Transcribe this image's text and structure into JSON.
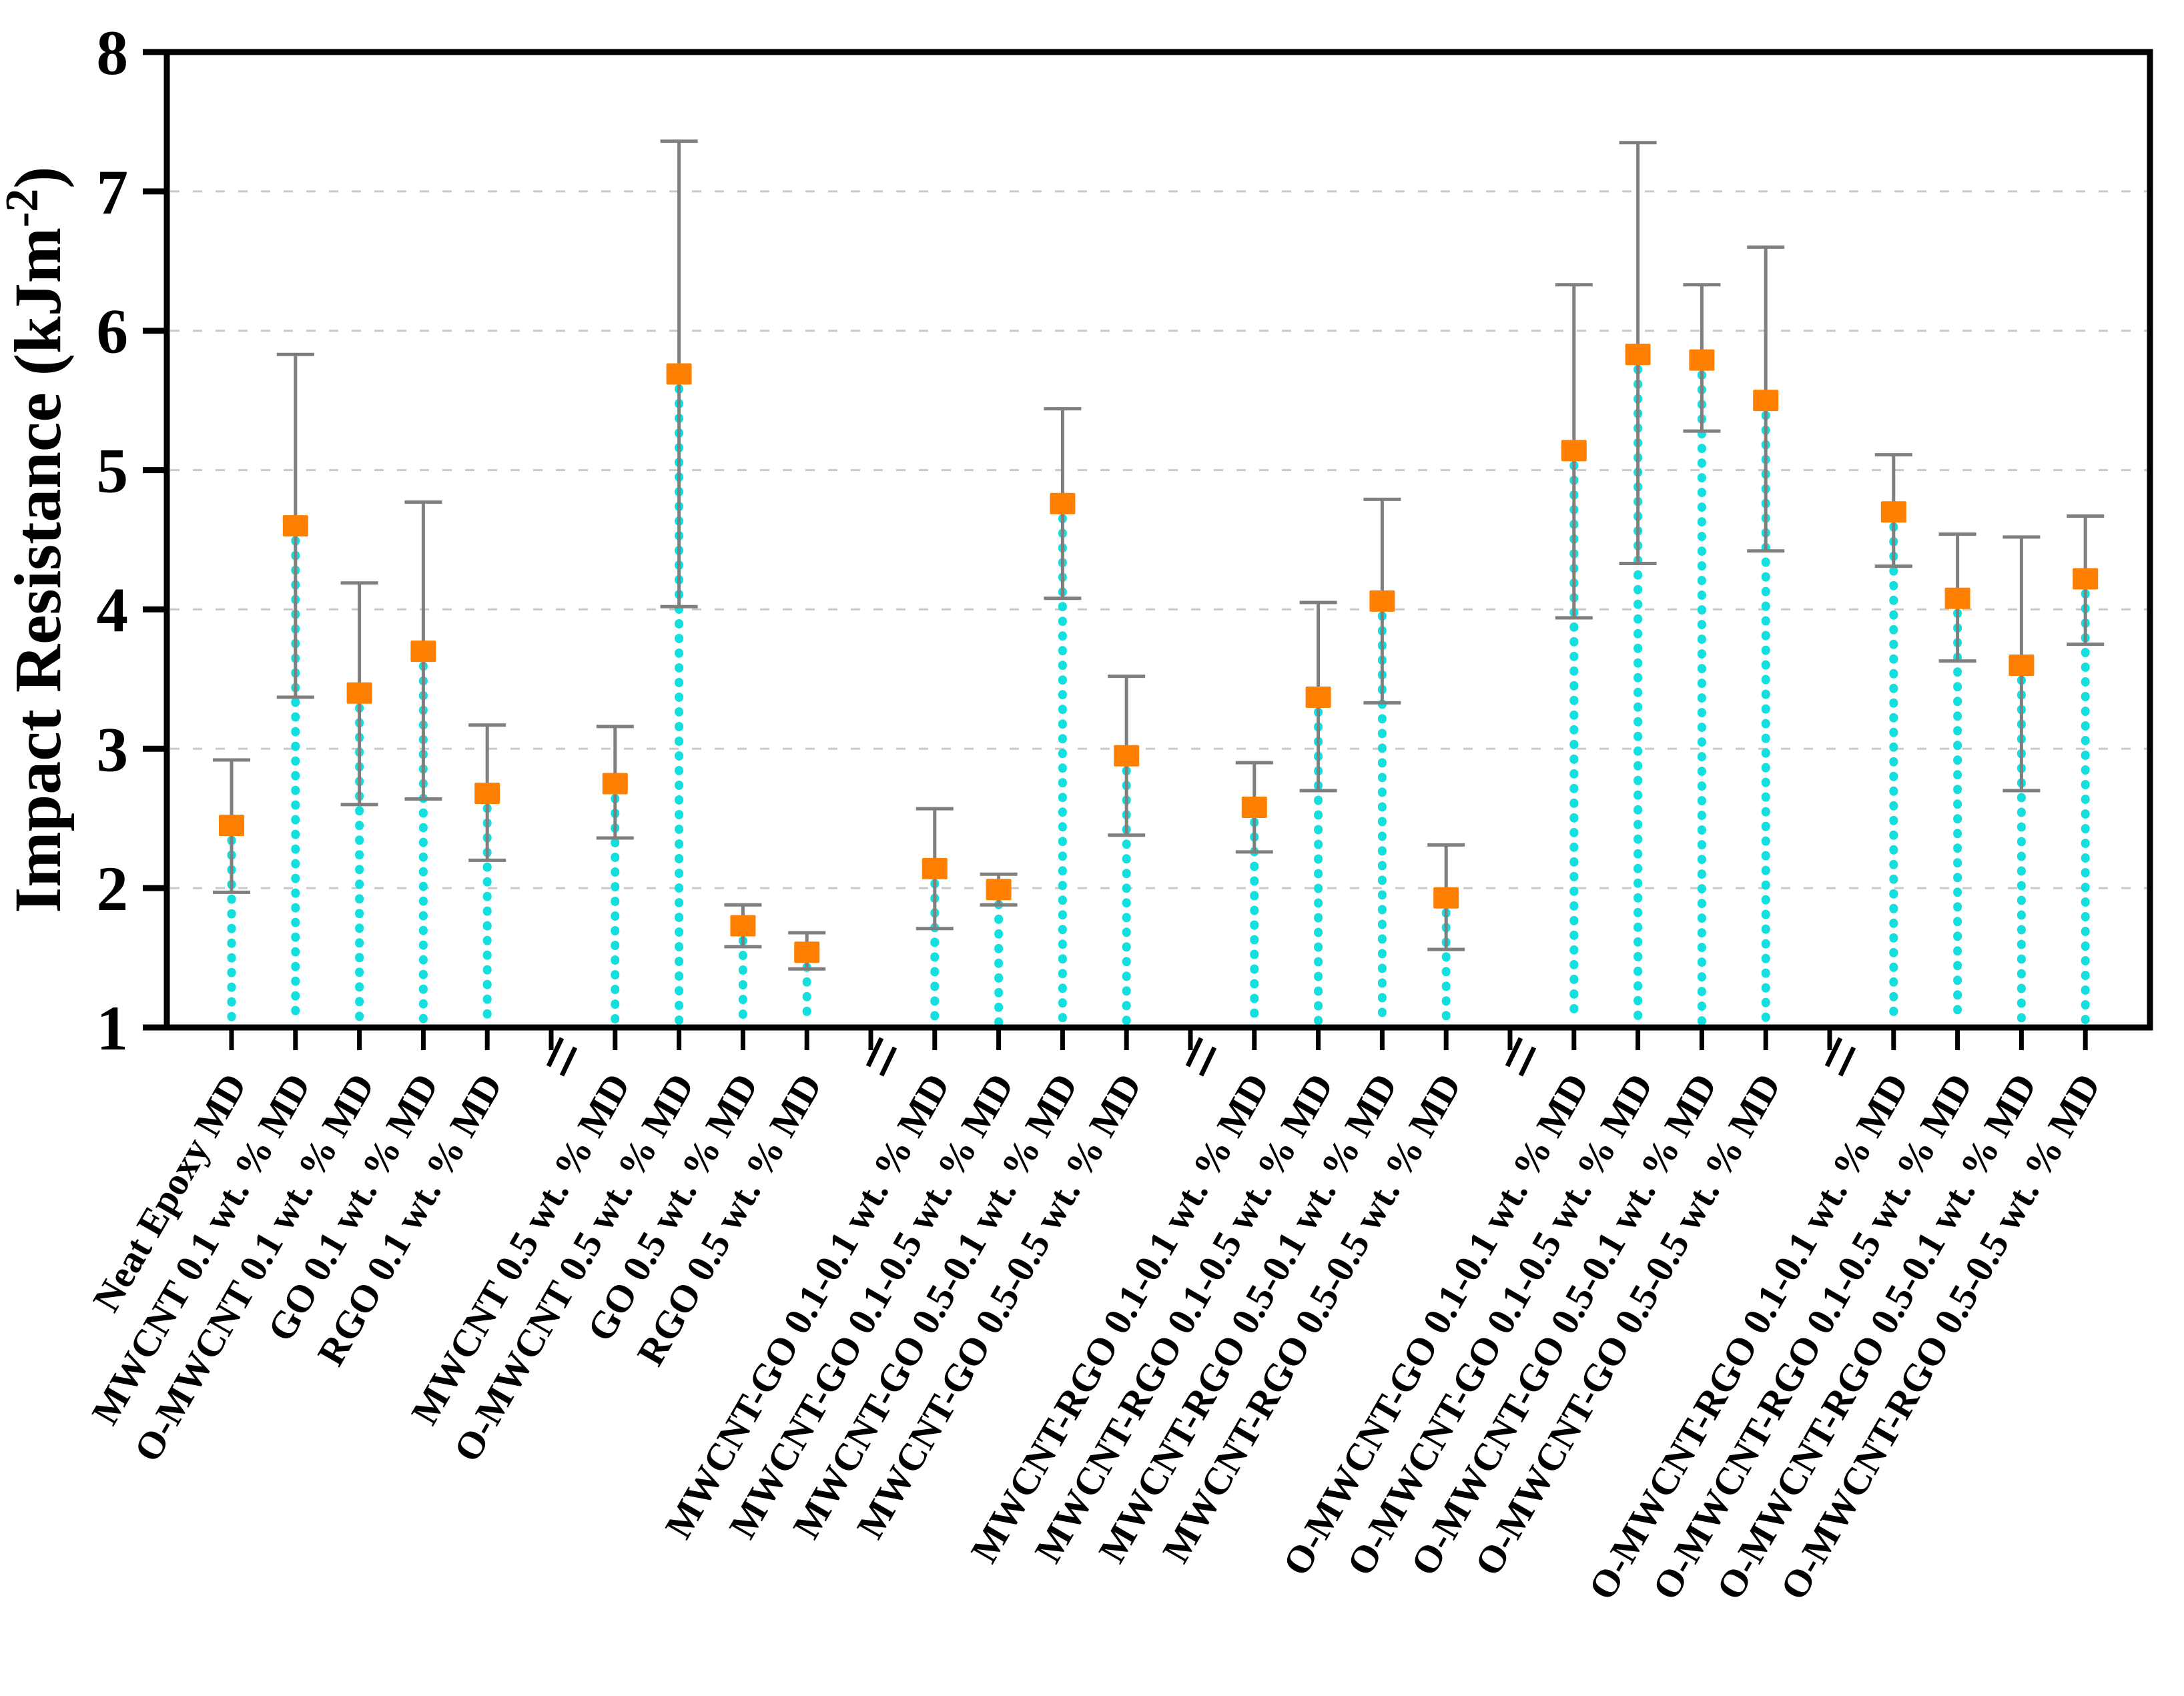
{
  "page": {
    "background": "#FFFFFF"
  },
  "chart_data": {
    "type": "scatter",
    "title": "",
    "ylabel_prefix": "Impact Resistance (kJm",
    "ylabel_superscript": "-2",
    "ylabel_suffix": ")",
    "xlabel": "",
    "ylim": [
      1,
      8
    ],
    "yticks": [
      1,
      2,
      3,
      4,
      5,
      6,
      7,
      8
    ],
    "grid": {
      "horizontal": true,
      "style": "dashed",
      "at": [
        2,
        3,
        4,
        5,
        6,
        7
      ]
    },
    "legend": null,
    "marker": "square",
    "axis_breaks_between_groups": true,
    "group_sizes": [
      5,
      4,
      4,
      4,
      4,
      4
    ],
    "categories": [
      "Neat Epoxy MD",
      "MWCNT 0.1 wt. % MD",
      "O-MWCNT 0.1 wt. % MD",
      "GO 0.1 wt. % MD",
      "RGO 0.1 wt. % MD",
      "MWCNT 0.5 wt. % MD",
      "O-MWCNT 0.5 wt. % MD",
      "GO 0.5 wt. % MD",
      "RGO 0.5 wt. % MD",
      "MWCNT-GO 0.1-0.1 wt. % MD",
      "MWCNT-GO 0.1-0.5 wt. % MD",
      "MWCNT-GO 0.5-0.1 wt. % MD",
      "MWCNT-GO 0.5-0.5 wt. % MD",
      "MWCNT-RGO 0.1-0.1 wt. % MD",
      "MWCNT-RGO 0.1-0.5 wt. % MD",
      "MWCNT-RGO 0.5-0.1 wt. % MD",
      "MWCNT-RGO 0.5-0.5 wt. % MD",
      "O-MWCNT-GO 0.1-0.1 wt. % MD",
      "O-MWCNT-GO 0.1-0.5 wt. % MD",
      "O-MWCNT-GO 0.5-0.1 wt. % MD",
      "O-MWCNT-GO 0.5-0.5 wt. % MD",
      "O-MWCNT-RGO 0.1-0.1 wt. % MD",
      "O-MWCNT-RGO 0.1-0.5 wt. % MD",
      "O-MWCNT-RGO 0.5-0.1 wt. % MD",
      "O-MWCNT-RGO 0.5-0.5 wt. % MD"
    ],
    "values": [
      2.45,
      4.6,
      3.4,
      3.7,
      2.68,
      2.75,
      5.69,
      1.73,
      1.54,
      2.14,
      1.99,
      4.76,
      2.95,
      2.58,
      3.37,
      4.06,
      1.93,
      5.14,
      5.83,
      5.79,
      5.5,
      4.7,
      4.08,
      3.6,
      4.22
    ],
    "error_upper": [
      2.92,
      5.83,
      4.19,
      4.77,
      3.17,
      3.16,
      7.36,
      1.88,
      1.68,
      2.57,
      2.1,
      5.44,
      3.52,
      2.9,
      4.05,
      4.79,
      2.31,
      6.33,
      7.35,
      6.33,
      6.6,
      5.11,
      4.54,
      4.52,
      4.67
    ],
    "error_lower": [
      1.97,
      3.37,
      2.6,
      2.64,
      2.2,
      2.36,
      4.02,
      1.58,
      1.42,
      1.71,
      1.88,
      4.08,
      2.38,
      2.26,
      2.7,
      3.33,
      1.56,
      3.94,
      4.33,
      5.28,
      4.42,
      4.31,
      3.63,
      2.7,
      3.75
    ],
    "colors": {
      "marker": "#FF8000",
      "error_bar": "#7F7F7F",
      "drop_line": "#00DCDC",
      "gridline": "#C9C9C9",
      "axis": "#000000",
      "text": "#000000",
      "background": "#FFFFFF"
    }
  }
}
